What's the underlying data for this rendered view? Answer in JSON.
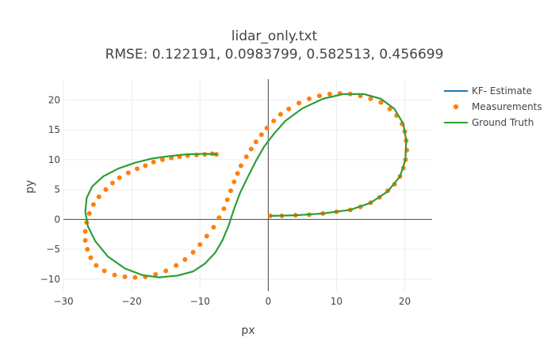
{
  "chart_data": {
    "type": "scatter",
    "title": "lidar_only.txt",
    "subtitle": "RMSE: 0.122191, 0.0983799, 0.582513, 0.456699",
    "xlabel": "px",
    "ylabel": "py",
    "xlim": [
      -30,
      24
    ],
    "ylim": [
      -12,
      23.5
    ],
    "xticks": [
      -30,
      -20,
      -10,
      0,
      10,
      20
    ],
    "yticks": [
      -10,
      -5,
      0,
      5,
      10,
      15,
      20
    ],
    "xtick_labels": [
      "−30",
      "−20",
      "−10",
      "0",
      "10",
      "20"
    ],
    "ytick_labels": [
      "−10",
      "−5",
      "0",
      "5",
      "10",
      "15",
      "20"
    ],
    "grid": true,
    "legend_position": "top-right",
    "colors": {
      "kf_estimate": "#1f77b4",
      "measurements": "#ff7f0e",
      "ground_truth": "#2ca02c",
      "grid": "#eeeeee",
      "zero_line": "#444444"
    },
    "series": [
      {
        "name": "KF- Estimate",
        "mode": "line",
        "x": [
          0.3,
          4,
          8,
          12,
          15,
          17.5,
          19.3,
          20.1,
          20.2,
          19.8,
          18.5,
          16.5,
          14,
          11,
          8,
          5,
          2.5,
          0.8,
          -0.6,
          -1.8,
          -3,
          -4.1,
          -5,
          -5.8,
          -6.7,
          -7.8,
          -9.3,
          -11,
          -13.3,
          -16,
          -18.5,
          -21,
          -23.5,
          -25.3,
          -26.4,
          -26.8,
          -26.6,
          -25.8,
          -24.2,
          -22,
          -19.5,
          -17,
          -14.5,
          -12,
          -9.5,
          -7.5
        ],
        "y": [
          0.6,
          0.7,
          1,
          1.6,
          2.8,
          4.7,
          7.2,
          10,
          13.2,
          16,
          18.5,
          20.2,
          21,
          21,
          20.2,
          18.6,
          16.5,
          14.3,
          12.2,
          9.8,
          7.1,
          4.5,
          1.8,
          -1,
          -3.5,
          -5.6,
          -7.4,
          -8.7,
          -9.4,
          -9.7,
          -9.3,
          -8.2,
          -6.2,
          -3.7,
          -1.2,
          1.3,
          3.6,
          5.5,
          7.2,
          8.5,
          9.5,
          10.2,
          10.6,
          10.9,
          11,
          10.9
        ]
      },
      {
        "name": "Measurements",
        "mode": "markers",
        "x": [
          0.3,
          2,
          4,
          6,
          8,
          10,
          12,
          13.5,
          15,
          16.3,
          17.5,
          18.5,
          19.3,
          19.8,
          20.1,
          20.3,
          20.2,
          20,
          19.6,
          18.8,
          17.8,
          16.5,
          15,
          13.5,
          12,
          10.5,
          9,
          7.5,
          6,
          4.5,
          3,
          1.8,
          0.8,
          -0.2,
          -1,
          -1.8,
          -2.5,
          -3.2,
          -4,
          -4.5,
          -5,
          -5.5,
          -6,
          -6.5,
          -7.2,
          -8,
          -9,
          -10,
          -11,
          -12.2,
          -13.5,
          -15,
          -16.5,
          -18,
          -19.5,
          -21,
          -22.5,
          -24,
          -25.2,
          -26,
          -26.5,
          -26.8,
          -26.8,
          -26.6,
          -26.2,
          -25.6,
          -24.8,
          -23.8,
          -22.8,
          -21.8,
          -20.5,
          -19.2,
          -18,
          -16.8,
          -15.5,
          -14.2,
          -13,
          -11.8,
          -10.5,
          -9.3,
          -8.2,
          -7.6
        ],
        "y": [
          0.6,
          0.6,
          0.7,
          0.8,
          1,
          1.3,
          1.6,
          2.1,
          2.8,
          3.7,
          4.8,
          5.9,
          7.2,
          8.6,
          10,
          11.6,
          13.2,
          14.7,
          16,
          17.4,
          18.5,
          19.6,
          20.2,
          20.7,
          21,
          21.1,
          21,
          20.7,
          20.2,
          19.5,
          18.5,
          17.6,
          16.5,
          15.3,
          14.2,
          13,
          11.8,
          10.5,
          9,
          7.7,
          6.3,
          4.8,
          3.3,
          1.8,
          0.3,
          -1.3,
          -2.8,
          -4.2,
          -5.5,
          -6.7,
          -7.7,
          -8.6,
          -9.2,
          -9.6,
          -9.7,
          -9.6,
          -9.3,
          -8.6,
          -7.7,
          -6.4,
          -5,
          -3.5,
          -2,
          -0.5,
          1,
          2.5,
          3.8,
          5,
          6.1,
          7,
          7.8,
          8.5,
          9,
          9.6,
          10,
          10.3,
          10.5,
          10.7,
          10.8,
          10.9,
          11,
          10.9
        ]
      },
      {
        "name": "Ground Truth",
        "mode": "line",
        "x": [
          0.3,
          4,
          8,
          12,
          15,
          17.5,
          19.3,
          20.1,
          20.2,
          19.8,
          18.5,
          16.5,
          14,
          11,
          8,
          5,
          2.5,
          0.8,
          -0.6,
          -1.8,
          -3,
          -4.1,
          -5,
          -5.8,
          -6.7,
          -7.8,
          -9.3,
          -11,
          -13.3,
          -16,
          -18.5,
          -21,
          -23.5,
          -25.3,
          -26.4,
          -26.8,
          -26.6,
          -25.8,
          -24.2,
          -22,
          -19.5,
          -17,
          -14.5,
          -12,
          -9.5,
          -7.5
        ],
        "y": [
          0.6,
          0.7,
          1,
          1.6,
          2.8,
          4.7,
          7.2,
          10,
          13.2,
          16,
          18.5,
          20.2,
          21,
          21,
          20.2,
          18.6,
          16.5,
          14.3,
          12.2,
          9.8,
          7.1,
          4.5,
          1.8,
          -1,
          -3.5,
          -5.6,
          -7.4,
          -8.7,
          -9.4,
          -9.7,
          -9.3,
          -8.2,
          -6.2,
          -3.7,
          -1.2,
          1.3,
          3.6,
          5.5,
          7.2,
          8.5,
          9.5,
          10.2,
          10.6,
          10.9,
          11,
          10.9
        ]
      }
    ]
  }
}
